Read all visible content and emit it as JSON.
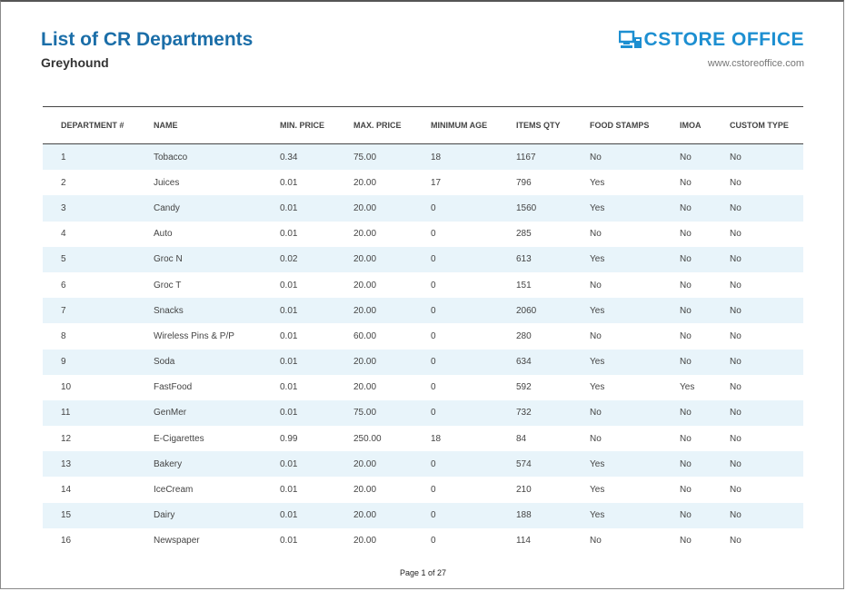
{
  "header": {
    "title": "List of CR Departments",
    "subtitle": "Greyhound",
    "logo_text": "CSTORE OFFICE",
    "website": "www.cstoreoffice.com"
  },
  "table": {
    "columns": [
      "DEPARTMENT #",
      "NAME",
      "MIN. PRICE",
      "MAX. PRICE",
      "MINIMUM AGE",
      "ITEMS QTY",
      "FOOD STAMPS",
      "IMOA",
      "CUSTOM TYPE"
    ],
    "rows": [
      [
        "1",
        "Tobacco",
        "0.34",
        "75.00",
        "18",
        "1167",
        "No",
        "No",
        "No"
      ],
      [
        "2",
        "Juices",
        "0.01",
        "20.00",
        "17",
        "796",
        "Yes",
        "No",
        "No"
      ],
      [
        "3",
        "Candy",
        "0.01",
        "20.00",
        "0",
        "1560",
        "Yes",
        "No",
        "No"
      ],
      [
        "4",
        "Auto",
        "0.01",
        "20.00",
        "0",
        "285",
        "No",
        "No",
        "No"
      ],
      [
        "5",
        "Groc N",
        "0.02",
        "20.00",
        "0",
        "613",
        "Yes",
        "No",
        "No"
      ],
      [
        "6",
        "Groc T",
        "0.01",
        "20.00",
        "0",
        "151",
        "No",
        "No",
        "No"
      ],
      [
        "7",
        "Snacks",
        "0.01",
        "20.00",
        "0",
        "2060",
        "Yes",
        "No",
        "No"
      ],
      [
        "8",
        "Wireless Pins & P/P",
        "0.01",
        "60.00",
        "0",
        "280",
        "No",
        "No",
        "No"
      ],
      [
        "9",
        "Soda",
        "0.01",
        "20.00",
        "0",
        "634",
        "Yes",
        "No",
        "No"
      ],
      [
        "10",
        "FastFood",
        "0.01",
        "20.00",
        "0",
        "592",
        "Yes",
        "Yes",
        "No"
      ],
      [
        "11",
        "GenMer",
        "0.01",
        "75.00",
        "0",
        "732",
        "No",
        "No",
        "No"
      ],
      [
        "12",
        "E-Cigarettes",
        "0.99",
        "250.00",
        "18",
        "84",
        "No",
        "No",
        "No"
      ],
      [
        "13",
        "Bakery",
        "0.01",
        "20.00",
        "0",
        "574",
        "Yes",
        "No",
        "No"
      ],
      [
        "14",
        "IceCream",
        "0.01",
        "20.00",
        "0",
        "210",
        "Yes",
        "No",
        "No"
      ],
      [
        "15",
        "Dairy",
        "0.01",
        "20.00",
        "0",
        "188",
        "Yes",
        "No",
        "No"
      ],
      [
        "16",
        "Newspaper",
        "0.01",
        "20.00",
        "0",
        "114",
        "No",
        "No",
        "No"
      ]
    ]
  },
  "footer": {
    "page_label": "Page 1 of 27"
  },
  "colors": {
    "title": "#1b6ea8",
    "logo": "#1d8fd1",
    "row_stripe": "#e8f4fa"
  },
  "icons": {
    "logo": "register-computer-icon"
  }
}
